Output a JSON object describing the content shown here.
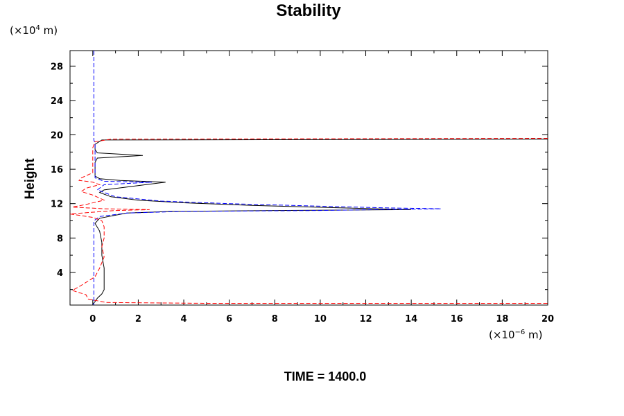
{
  "chart_data": {
    "type": "line",
    "title": "Stability",
    "ylabel": "Height",
    "y_unit": {
      "prefix": "(×10",
      "exp": "4",
      "suffix": " m)"
    },
    "x_unit": {
      "prefix": "(×10",
      "exp": "−6",
      "suffix": " m)"
    },
    "footer": "TIME = 1400.0",
    "xlim": [
      -1,
      20
    ],
    "ylim": [
      0.2,
      29.8
    ],
    "x_ticks": [
      0,
      2,
      4,
      6,
      8,
      10,
      12,
      14,
      16,
      18,
      20
    ],
    "y_ticks": [
      4,
      8,
      12,
      16,
      20,
      24,
      28
    ],
    "grid": false,
    "series": [
      {
        "color": "#000000",
        "dash": "solid",
        "points": [
          [
            0.0,
            0.3
          ],
          [
            0.1,
            0.6
          ],
          [
            0.2,
            1.0
          ],
          [
            0.4,
            1.5
          ],
          [
            0.5,
            2.0
          ],
          [
            0.5,
            3.0
          ],
          [
            0.5,
            4.5
          ],
          [
            0.4,
            6.0
          ],
          [
            0.4,
            7.5
          ],
          [
            0.3,
            8.8
          ],
          [
            0.1,
            9.7
          ],
          [
            0.3,
            10.3
          ],
          [
            1.5,
            10.9
          ],
          [
            3.5,
            11.1
          ],
          [
            8.0,
            11.2
          ],
          [
            14.0,
            11.3
          ],
          [
            11.0,
            11.5
          ],
          [
            7.0,
            11.8
          ],
          [
            4.0,
            12.1
          ],
          [
            2.0,
            12.4
          ],
          [
            0.8,
            12.8
          ],
          [
            0.3,
            13.3
          ],
          [
            0.5,
            13.6
          ],
          [
            3.2,
            14.5
          ],
          [
            1.2,
            14.7
          ],
          [
            0.3,
            14.9
          ],
          [
            0.1,
            15.2
          ],
          [
            0.1,
            16.0
          ],
          [
            0.1,
            16.8
          ],
          [
            0.2,
            17.3
          ],
          [
            2.2,
            17.6
          ],
          [
            0.2,
            17.9
          ],
          [
            0.1,
            18.3
          ],
          [
            0.1,
            18.9
          ],
          [
            0.4,
            19.4
          ],
          [
            20.0,
            19.5
          ]
        ]
      },
      {
        "color": "#0000ff",
        "dash": "dashed",
        "points": [
          [
            0.05,
            29.8
          ],
          [
            0.05,
            20.0
          ],
          [
            0.05,
            19.4
          ],
          [
            0.1,
            19.0
          ],
          [
            0.1,
            17.5
          ],
          [
            0.1,
            16.0
          ],
          [
            0.1,
            15.0
          ],
          [
            0.5,
            14.6
          ],
          [
            2.6,
            14.5
          ],
          [
            0.5,
            14.2
          ],
          [
            0.2,
            13.6
          ],
          [
            1.0,
            12.8
          ],
          [
            3.0,
            12.3
          ],
          [
            6.0,
            12.0
          ],
          [
            10.0,
            11.7
          ],
          [
            13.0,
            11.5
          ],
          [
            15.3,
            11.4
          ],
          [
            10.0,
            11.2
          ],
          [
            4.0,
            11.1
          ],
          [
            1.5,
            10.9
          ],
          [
            0.3,
            10.5
          ],
          [
            0.05,
            10.0
          ],
          [
            0.05,
            8.0
          ],
          [
            0.05,
            6.0
          ],
          [
            0.05,
            4.0
          ],
          [
            0.05,
            2.0
          ],
          [
            0.05,
            0.5
          ],
          [
            0.05,
            0.2
          ]
        ]
      },
      {
        "color": "#ff0000",
        "dash": "dashed",
        "points": [
          [
            20.0,
            19.6
          ],
          [
            0.8,
            19.5
          ],
          [
            0.1,
            19.2
          ],
          [
            0.0,
            18.5
          ],
          [
            0.0,
            17.0
          ],
          [
            0.0,
            15.6
          ],
          [
            -0.5,
            15.0
          ],
          [
            -0.6,
            14.7
          ],
          [
            0.0,
            14.5
          ],
          [
            0.3,
            14.2
          ],
          [
            -0.3,
            13.8
          ],
          [
            -0.5,
            13.4
          ],
          [
            0.0,
            13.0
          ],
          [
            0.5,
            12.4
          ],
          [
            -0.3,
            11.9
          ],
          [
            -0.9,
            11.6
          ],
          [
            0.5,
            11.4
          ],
          [
            2.5,
            11.3
          ],
          [
            1.0,
            11.2
          ],
          [
            -1.0,
            10.8
          ],
          [
            0.0,
            10.4
          ],
          [
            0.4,
            10.0
          ],
          [
            0.5,
            9.3
          ],
          [
            0.5,
            8.0
          ],
          [
            0.4,
            7.0
          ],
          [
            0.5,
            5.8
          ],
          [
            0.3,
            4.5
          ],
          [
            0.1,
            3.5
          ],
          [
            -0.5,
            2.5
          ],
          [
            -0.9,
            1.9
          ],
          [
            -0.3,
            1.4
          ],
          [
            -0.2,
            0.9
          ],
          [
            0.6,
            0.5
          ],
          [
            5.0,
            0.4
          ],
          [
            20.0,
            0.4
          ]
        ]
      }
    ]
  }
}
